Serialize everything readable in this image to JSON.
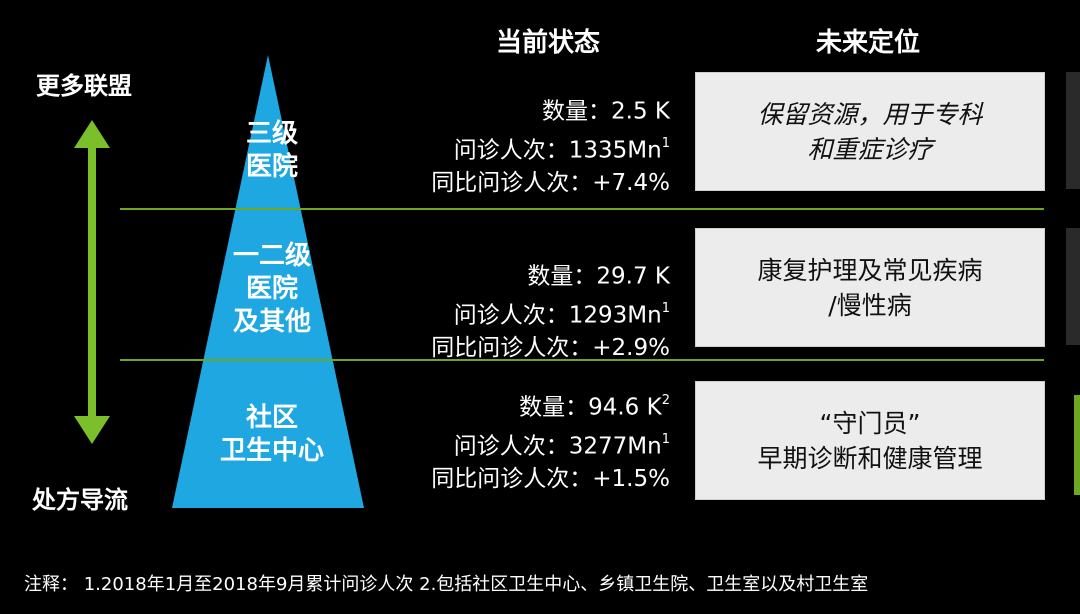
{
  "headers": {
    "current": "当前状态",
    "future": "未来定位"
  },
  "arrow": {
    "top_label": "更多联盟",
    "bottom_label": "处方导流",
    "color": "#7bbf2a"
  },
  "pyramid_color": "#1ea7e1",
  "divider_color": "#6fa81f",
  "tiers": [
    {
      "name_lines": [
        "三级",
        "医院"
      ],
      "count_label": "数量：",
      "count_value": "2.5 K",
      "count_sup": "",
      "visits_label": "问诊人次：",
      "visits_value": "1335Mn",
      "visits_sup": "1",
      "yoy_label": "同比问诊人次：",
      "yoy_value": "+7.4%",
      "future_lines": [
        "保留资源，用于专科",
        "和重症诊疗"
      ]
    },
    {
      "name_lines": [
        "一二级",
        "医院",
        "及其他"
      ],
      "count_label": "数量：",
      "count_value": "29.7 K",
      "count_sup": "",
      "visits_label": "问诊人次：",
      "visits_value": "1293Mn",
      "visits_sup": "1",
      "yoy_label": "同比问诊人次：",
      "yoy_value": "+2.9%",
      "future_lines": [
        "康复护理及常见疾病",
        "/慢性病"
      ]
    },
    {
      "name_lines": [
        "社区",
        "卫生中心"
      ],
      "count_label": "数量：",
      "count_value": "94.6 K",
      "count_sup": "2",
      "visits_label": "问诊人次：",
      "visits_value": "3277Mn",
      "visits_sup": "1",
      "yoy_label": "同比问诊人次：",
      "yoy_value": "+1.5%",
      "future_lines": [
        "“守门员”",
        "早期诊断和健康管理"
      ]
    }
  ],
  "footnote": "注释：  1.2018年1月至2018年9月累计问诊人次   2.包括社区卫生中心、乡镇卫生院、卫生室以及村卫生室"
}
